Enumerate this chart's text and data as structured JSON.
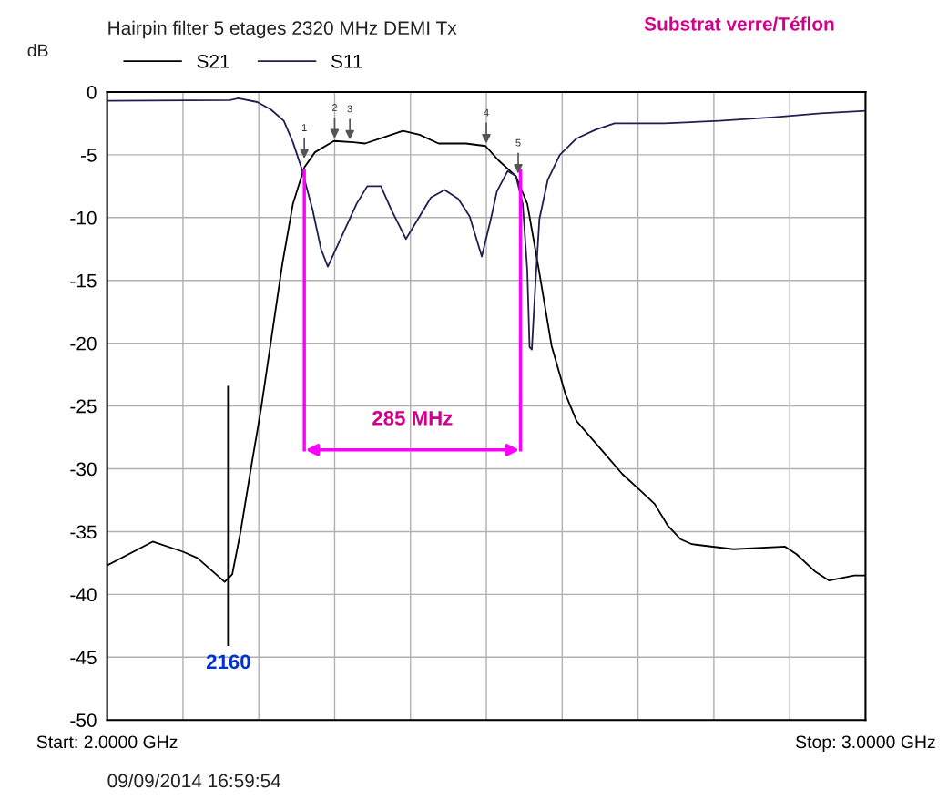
{
  "chart_data": {
    "type": "line",
    "title": "Hairpin filter 5 etages 2320 MHz DEMI Tx",
    "subtitle": "Substrat verre/Téflon",
    "ylabel": "dB",
    "xlim": [
      2.0,
      3.0
    ],
    "xticks": [
      {
        "value": 2.0,
        "label": "Start: 2.0000 GHz"
      },
      {
        "value": 2.1,
        "label": null
      },
      {
        "value": 2.2,
        "label": null
      },
      {
        "value": 2.3,
        "label": null
      },
      {
        "value": 2.4,
        "label": null
      },
      {
        "value": 2.5,
        "label": null
      },
      {
        "value": 2.6,
        "label": null
      },
      {
        "value": 2.7,
        "label": null
      },
      {
        "value": 2.8,
        "label": null
      },
      {
        "value": 2.9,
        "label": null
      },
      {
        "value": 3.0,
        "label": "Stop: 3.0000 GHz"
      }
    ],
    "ylim": [
      -50,
      0
    ],
    "yticks": [
      0,
      -5,
      -10,
      -15,
      -20,
      -25,
      -30,
      -35,
      -40,
      -45,
      -50
    ],
    "grid": true,
    "legend": "top left",
    "line_style": "solid",
    "marker": "none",
    "series": [
      {
        "name": "S21",
        "color": "#000000",
        "x": [
          2.0,
          2.06,
          2.1,
          2.119,
          2.155,
          2.165,
          2.176,
          2.189,
          2.203,
          2.231,
          2.245,
          2.26,
          2.274,
          2.299,
          2.325,
          2.34,
          2.365,
          2.39,
          2.412,
          2.437,
          2.473,
          2.499,
          2.517,
          2.539,
          2.554,
          2.568,
          2.586,
          2.604,
          2.619,
          2.652,
          2.679,
          2.706,
          2.722,
          2.739,
          2.756,
          2.771,
          2.826,
          2.894,
          2.909,
          2.934,
          2.952,
          2.985,
          3.0
        ],
        "values": [
          -37.7,
          -35.8,
          -36.6,
          -37.1,
          -39.0,
          -38.4,
          -35.0,
          -30.2,
          -25.2,
          -13.7,
          -8.9,
          -6.0,
          -4.8,
          -3.9,
          -4.0,
          -4.1,
          -3.6,
          -3.1,
          -3.4,
          -4.1,
          -4.1,
          -4.3,
          -5.5,
          -6.7,
          -8.9,
          -13.7,
          -20.2,
          -24.0,
          -26.2,
          -28.5,
          -30.4,
          -31.9,
          -32.8,
          -34.5,
          -35.6,
          -36.0,
          -36.4,
          -36.2,
          -36.8,
          -38.2,
          -38.9,
          -38.5,
          -38.5
        ]
      },
      {
        "name": "S11",
        "color": "#202050",
        "x": [
          2.0,
          2.162,
          2.173,
          2.198,
          2.216,
          2.233,
          2.245,
          2.256,
          2.271,
          2.282,
          2.291,
          2.307,
          2.329,
          2.343,
          2.361,
          2.375,
          2.394,
          2.408,
          2.427,
          2.445,
          2.463,
          2.478,
          2.494,
          2.506,
          2.514,
          2.528,
          2.539,
          2.548,
          2.554,
          2.557,
          2.56,
          2.565,
          2.57,
          2.581,
          2.597,
          2.619,
          2.644,
          2.669,
          2.735,
          2.807,
          2.88,
          2.941,
          3.0
        ],
        "values": [
          -0.7,
          -0.65,
          -0.5,
          -0.8,
          -1.4,
          -2.3,
          -4.0,
          -6.0,
          -9.4,
          -12.5,
          -13.9,
          -11.8,
          -8.9,
          -7.5,
          -7.5,
          -9.4,
          -11.7,
          -10.3,
          -8.4,
          -7.8,
          -8.5,
          -9.9,
          -13.1,
          -10.1,
          -7.9,
          -6.3,
          -6.7,
          -8.9,
          -14.2,
          -20.3,
          -20.5,
          -15.0,
          -10.1,
          -7.0,
          -5.0,
          -3.7,
          -3.0,
          -2.5,
          -2.5,
          -2.3,
          -2.0,
          -1.7,
          -1.5
        ]
      }
    ],
    "ref_lines": [
      {
        "axis": "x",
        "value": 2.16,
        "label": "2160",
        "color": "#000000"
      },
      {
        "axis": "x",
        "value": 2.26,
        "color": "#ff00ff"
      },
      {
        "axis": "x",
        "value": 2.545,
        "color": "#ff00ff"
      }
    ],
    "annotations": [
      {
        "text": "1",
        "x": 2.26,
        "y": -5.5
      },
      {
        "text": "2",
        "x": 2.3,
        "y": -3.9
      },
      {
        "text": "3",
        "x": 2.32,
        "y": -4.0
      },
      {
        "text": "4",
        "x": 2.5,
        "y": -4.3
      },
      {
        "text": "5",
        "x": 2.542,
        "y": -6.7
      },
      "285 MHz",
      "09/09/2014 16:59:54"
    ]
  }
}
